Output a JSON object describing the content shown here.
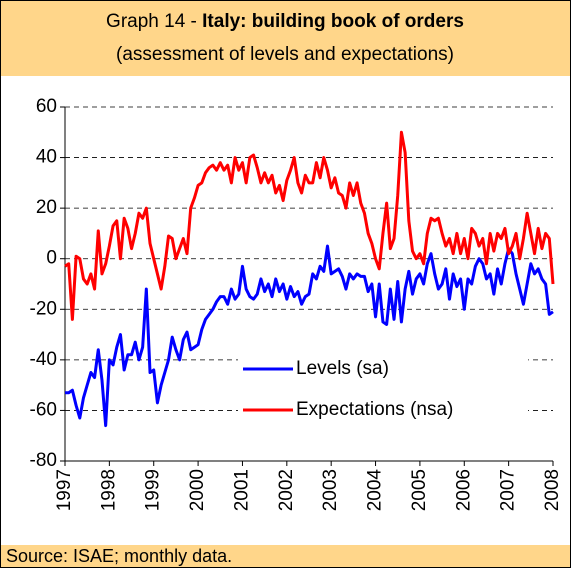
{
  "chart_data": {
    "type": "line",
    "title": [
      "Graph 14 - ",
      "Italy: building book of orders"
    ],
    "subtitle": "(assessment of levels and expectations)",
    "source": "Source: ISAE; monthly data.",
    "categories": [
      "1997",
      null,
      null,
      null,
      null,
      null,
      null,
      null,
      null,
      null,
      null,
      null,
      "1998",
      null,
      null,
      null,
      null,
      null,
      null,
      null,
      null,
      null,
      null,
      null,
      "1999",
      null,
      null,
      null,
      null,
      null,
      null,
      null,
      null,
      null,
      null,
      null,
      "2000",
      null,
      null,
      null,
      null,
      null,
      null,
      null,
      null,
      null,
      null,
      null,
      "2001",
      null,
      null,
      null,
      null,
      null,
      null,
      null,
      null,
      null,
      null,
      null,
      "2002",
      null,
      null,
      null,
      null,
      null,
      null,
      null,
      null,
      null,
      null,
      null,
      "2003",
      null,
      null,
      null,
      null,
      null,
      null,
      null,
      null,
      null,
      null,
      null,
      "2004",
      null,
      null,
      null,
      null,
      null,
      null,
      null,
      null,
      null,
      null,
      null,
      "2005",
      null,
      null,
      null,
      null,
      null,
      null,
      null,
      null,
      null,
      null,
      null,
      "2006",
      null,
      null,
      null,
      null,
      null,
      null,
      null,
      null,
      null,
      null,
      null,
      "2007",
      null,
      null,
      null,
      null,
      null,
      null,
      null,
      null,
      null,
      null,
      null,
      "2008"
    ],
    "series": [
      {
        "name": "Levels (sa)",
        "color": "#0000ff",
        "values": [
          -53,
          -53,
          -52,
          -58,
          -63,
          -55,
          -50,
          -45,
          -47,
          -36,
          -48,
          -66,
          -40,
          -42,
          -35,
          -30,
          -44,
          -38,
          -38,
          -33,
          -40,
          -35,
          -12,
          -45,
          -44,
          -57,
          -50,
          -45,
          -40,
          -31,
          -36,
          -40,
          -32,
          -29,
          -36,
          -35,
          -34,
          -28,
          -24,
          -22,
          -20,
          -17,
          -15,
          -15,
          -18,
          -12,
          -16,
          -14,
          -3,
          -12,
          -15,
          -16,
          -14,
          -8,
          -13,
          -10,
          -15,
          -8,
          -13,
          -10,
          -16,
          -11,
          -15,
          -13,
          -18,
          -15,
          -14,
          -6,
          -8,
          -3,
          -5,
          5,
          -6,
          -5,
          -4,
          -7,
          -12,
          -6,
          -8,
          -6,
          -7,
          -7,
          -13,
          -10,
          -23,
          -10,
          -25,
          -26,
          -12,
          -24,
          -9,
          -25,
          -12,
          -5,
          -14,
          -8,
          -6,
          -10,
          -2,
          2,
          -6,
          -12,
          -10,
          -4,
          -16,
          -6,
          -11,
          -8,
          -20,
          -8,
          -10,
          -3,
          0,
          -2,
          -8,
          -6,
          -14,
          -4,
          -10,
          -2,
          4,
          2,
          -6,
          -12,
          -18,
          -10,
          -2,
          -6,
          -4,
          -8,
          -10,
          -22,
          -21
        ]
      },
      {
        "name": "Expectations (nsa)",
        "color": "#ff0000",
        "values": [
          -3,
          -2,
          -24,
          1,
          0,
          -8,
          -10,
          -6,
          -12,
          11,
          -6,
          -2,
          5,
          13,
          15,
          0,
          16,
          12,
          4,
          10,
          18,
          16,
          20,
          6,
          0,
          -6,
          -12,
          -3,
          9,
          8,
          0,
          4,
          8,
          2,
          20,
          24,
          29,
          30,
          34,
          36,
          37,
          35,
          38,
          35,
          37,
          30,
          40,
          35,
          38,
          30,
          40,
          41,
          36,
          30,
          34,
          30,
          33,
          26,
          29,
          23,
          31,
          35,
          40,
          30,
          26,
          33,
          30,
          30,
          38,
          32,
          40,
          35,
          28,
          32,
          26,
          25,
          20,
          30,
          25,
          30,
          22,
          18,
          10,
          6,
          0,
          -4,
          10,
          22,
          4,
          8,
          25,
          50,
          42,
          15,
          3,
          0,
          2,
          -2,
          10,
          16,
          15,
          16,
          10,
          5,
          8,
          2,
          10,
          2,
          8,
          0,
          12,
          10,
          5,
          8,
          -2,
          10,
          3,
          10,
          8,
          12,
          2,
          5,
          10,
          0,
          8,
          18,
          10,
          2,
          12,
          4,
          10,
          8,
          -10
        ]
      }
    ],
    "ylim": [
      -80,
      60
    ],
    "yticks": [
      -80,
      -60,
      -40,
      -20,
      0,
      20,
      40,
      60
    ],
    "grid": true,
    "legend_position": "lower right"
  }
}
